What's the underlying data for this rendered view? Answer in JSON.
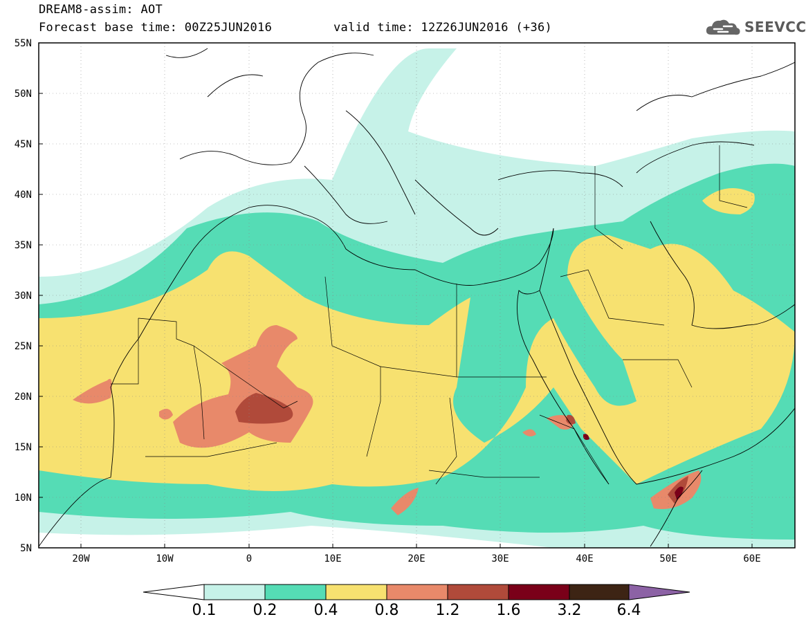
{
  "title": {
    "line1": "DREAM8-assim: AOT",
    "line2": "Forecast base time: 00Z25JUN2016",
    "line2b": "valid time: 12Z26JUN2016 (+36)"
  },
  "logo": {
    "text": "SEEVCCC",
    "icon": "cloud-icon"
  },
  "map": {
    "type": "contour-map",
    "variable": "AOT",
    "lon_range": [
      -25,
      65
    ],
    "lat_range": [
      5,
      55
    ],
    "lat_labels": [
      "55N",
      "50N",
      "45N",
      "40N",
      "35N",
      "30N",
      "25N",
      "20N",
      "15N",
      "10N",
      "5N"
    ],
    "lon_labels": [
      "20W",
      "10W",
      "0",
      "10E",
      "20E",
      "30E",
      "40E",
      "50E",
      "60E"
    ],
    "grid": "dotted"
  },
  "colorbar": {
    "levels": [
      "0.1",
      "0.2",
      "0.4",
      "0.8",
      "1.2",
      "1.6",
      "3.2",
      "6.4"
    ],
    "colors": [
      "#ffffff",
      "#c6f2e8",
      "#55dcb5",
      "#f7e170",
      "#e8896a",
      "#b04a3a",
      "#7a0019",
      "#3d2414",
      "#8c62a5"
    ]
  },
  "fill_colors": {
    "l1": "#c6f2e8",
    "l2": "#55dcb5",
    "l3": "#f7e170",
    "l4": "#e8896a",
    "l5": "#b04a3a",
    "l6": "#7a0019"
  }
}
